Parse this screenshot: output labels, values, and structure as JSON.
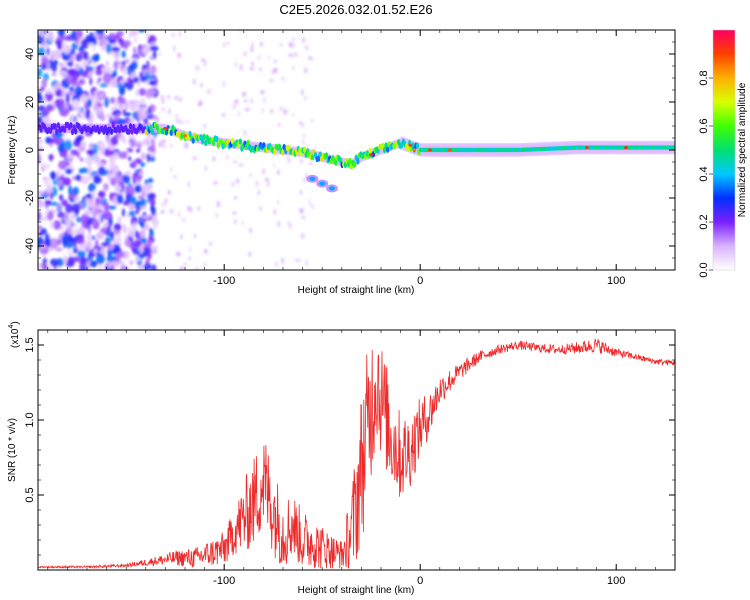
{
  "chart_data": [
    {
      "type": "heatmap",
      "title": "C2E5.2026.032.01.52.E26",
      "xlabel": "Height of straight line (km)",
      "ylabel": "Frequency (Hz)",
      "xlim": [
        -195,
        130
      ],
      "ylim": [
        -50,
        50
      ],
      "xticks": [
        -100,
        0,
        100
      ],
      "yticks": [
        -40,
        -20,
        0,
        20,
        40
      ],
      "colorbar": {
        "label": "Normalized spectral amplitude",
        "range": [
          0.0,
          1.0
        ],
        "ticks": [
          0.0,
          0.2,
          0.4,
          0.6,
          0.8
        ],
        "colors": [
          "#ffffff",
          "#d9b3ff",
          "#7a1fff",
          "#0030ff",
          "#00c8ff",
          "#00e070",
          "#40ff00",
          "#d8ff00",
          "#ffb000",
          "#ff4000",
          "#ff0060"
        ]
      },
      "ridge": {
        "height_km": [
          -140,
          -130,
          -120,
          -110,
          -100,
          -90,
          -80,
          -70,
          -60,
          -50,
          -40,
          -35,
          -30,
          -20,
          -10,
          0,
          20,
          50,
          80,
          100,
          130
        ],
        "frequency_hz": [
          9,
          9,
          6,
          4,
          3,
          2,
          1,
          0,
          -1,
          -3,
          -5,
          -6,
          -3,
          0,
          3,
          0,
          0,
          0,
          1,
          1,
          1
        ],
        "side_lobe": {
          "height_km": [
            -55,
            -50,
            -45
          ],
          "frequency_hz": [
            -12,
            -14,
            -16
          ]
        }
      }
    },
    {
      "type": "line",
      "xlabel": "Height of straight line (km)",
      "ylabel": "SNR (10 * v/v)",
      "y_multiplier": "(x10",
      "y_multiplier_exp": "4",
      "xlim": [
        -195,
        130
      ],
      "ylim": [
        0,
        1.6
      ],
      "xticks": [
        -100,
        0,
        100
      ],
      "yticks": [
        0.5,
        1.0,
        1.5
      ],
      "ytick_labels": [
        "0.5",
        "1.0",
        "1.5"
      ],
      "series": [
        {
          "name": "SNR",
          "color": "#ee2b2b",
          "x": [
            -195,
            -170,
            -150,
            -135,
            -125,
            -115,
            -110,
            -105,
            -100,
            -95,
            -90,
            -85,
            -80,
            -75,
            -70,
            -65,
            -60,
            -55,
            -50,
            -45,
            -40,
            -35,
            -32,
            -30,
            -28,
            -25,
            -22,
            -20,
            -15,
            -10,
            -5,
            0,
            5,
            10,
            20,
            30,
            40,
            50,
            60,
            70,
            80,
            90,
            100,
            110,
            120,
            130
          ],
          "y": [
            0.02,
            0.02,
            0.03,
            0.06,
            0.08,
            0.08,
            0.1,
            0.12,
            0.14,
            0.25,
            0.35,
            0.45,
            0.6,
            0.4,
            0.25,
            0.3,
            0.2,
            0.18,
            0.15,
            0.12,
            0.1,
            0.25,
            0.5,
            0.7,
            0.85,
            1.1,
            1.3,
            1.15,
            0.9,
            0.75,
            0.8,
            0.95,
            1.05,
            1.2,
            1.32,
            1.42,
            1.47,
            1.5,
            1.48,
            1.47,
            1.48,
            1.5,
            1.45,
            1.42,
            1.39,
            1.38
          ],
          "noise": [
            0.005,
            0.008,
            0.01,
            0.03,
            0.05,
            0.07,
            0.08,
            0.1,
            0.12,
            0.15,
            0.25,
            0.3,
            0.35,
            0.3,
            0.25,
            0.22,
            0.2,
            0.18,
            0.15,
            0.12,
            0.1,
            0.3,
            0.45,
            0.5,
            0.55,
            0.5,
            0.45,
            0.4,
            0.35,
            0.3,
            0.25,
            0.2,
            0.15,
            0.1,
            0.06,
            0.04,
            0.03,
            0.03,
            0.03,
            0.03,
            0.04,
            0.05,
            0.03,
            0.02,
            0.02,
            0.02
          ]
        }
      ]
    }
  ]
}
